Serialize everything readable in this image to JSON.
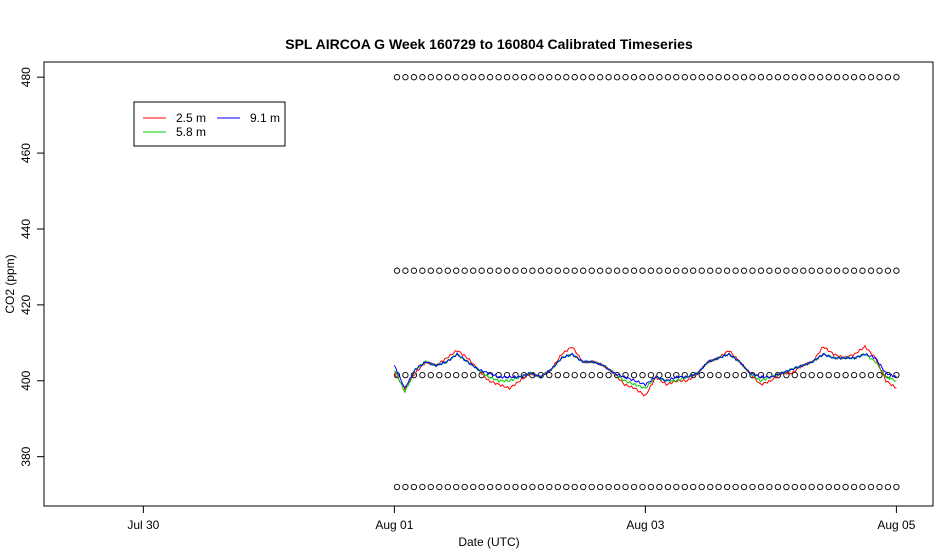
{
  "chart_data": {
    "type": "line",
    "title": "SPL AIRCOA G  Week 160729 to 160804  Calibrated Timeseries",
    "xlabel": "Date (UTC)",
    "ylabel": "CO2 (ppm)",
    "xlim": [
      "2016-07-29T05:00",
      "2016-08-05T07:00"
    ],
    "ylim": [
      367,
      484
    ],
    "x_ticks": [
      {
        "label": "Jul 30",
        "value": "2016-07-30T00:00"
      },
      {
        "label": "Aug 01",
        "value": "2016-08-01T00:00"
      },
      {
        "label": "Aug 03",
        "value": "2016-08-03T00:00"
      },
      {
        "label": "Aug 05",
        "value": "2016-08-05T00:00"
      }
    ],
    "y_ticks": [
      380,
      400,
      420,
      440,
      460,
      480
    ],
    "grid": false,
    "legend": {
      "position": "top-left",
      "columns": 2
    },
    "series": [
      {
        "name": "2.5 m",
        "color": "#ff0000",
        "x": [
          "2016-08-01T00:00",
          "2016-08-01T02:00",
          "2016-08-01T04:00",
          "2016-08-01T06:00",
          "2016-08-01T08:00",
          "2016-08-01T10:00",
          "2016-08-01T12:00",
          "2016-08-01T14:00",
          "2016-08-01T16:00",
          "2016-08-01T18:00",
          "2016-08-01T20:00",
          "2016-08-01T22:00",
          "2016-08-02T00:00",
          "2016-08-02T02:00",
          "2016-08-02T04:00",
          "2016-08-02T06:00",
          "2016-08-02T08:00",
          "2016-08-02T10:00",
          "2016-08-02T12:00",
          "2016-08-02T14:00",
          "2016-08-02T16:00",
          "2016-08-02T18:00",
          "2016-08-02T20:00",
          "2016-08-02T22:00",
          "2016-08-03T00:00",
          "2016-08-03T02:00",
          "2016-08-03T04:00",
          "2016-08-03T06:00",
          "2016-08-03T08:00",
          "2016-08-03T10:00",
          "2016-08-03T12:00",
          "2016-08-03T14:00",
          "2016-08-03T16:00",
          "2016-08-03T18:00",
          "2016-08-03T20:00",
          "2016-08-03T22:00",
          "2016-08-04T00:00",
          "2016-08-04T02:00",
          "2016-08-04T04:00",
          "2016-08-04T06:00",
          "2016-08-04T08:00",
          "2016-08-04T10:00",
          "2016-08-04T12:00",
          "2016-08-04T14:00",
          "2016-08-04T16:00",
          "2016-08-04T18:00",
          "2016-08-04T20:00",
          "2016-08-04T22:00",
          "2016-08-05T00:00"
        ],
        "values": [
          402,
          398,
          402,
          405,
          404,
          406,
          408,
          406,
          403,
          400,
          399,
          398,
          400,
          402,
          401,
          403,
          407,
          409,
          405,
          405,
          404,
          402,
          399,
          398,
          396,
          401,
          399,
          400,
          400,
          402,
          405,
          406,
          408,
          405,
          402,
          399,
          400,
          402,
          402,
          404,
          405,
          409,
          407,
          406,
          407,
          409,
          406,
          400,
          398
        ]
      },
      {
        "name": "5.8 m",
        "color": "#00cc00",
        "x": [
          "2016-08-01T00:00",
          "2016-08-01T02:00",
          "2016-08-01T04:00",
          "2016-08-01T06:00",
          "2016-08-01T08:00",
          "2016-08-01T10:00",
          "2016-08-01T12:00",
          "2016-08-01T14:00",
          "2016-08-01T16:00",
          "2016-08-01T18:00",
          "2016-08-01T20:00",
          "2016-08-01T22:00",
          "2016-08-02T00:00",
          "2016-08-02T02:00",
          "2016-08-02T04:00",
          "2016-08-02T06:00",
          "2016-08-02T08:00",
          "2016-08-02T10:00",
          "2016-08-02T12:00",
          "2016-08-02T14:00",
          "2016-08-02T16:00",
          "2016-08-02T18:00",
          "2016-08-02T20:00",
          "2016-08-02T22:00",
          "2016-08-03T00:00",
          "2016-08-03T02:00",
          "2016-08-03T04:00",
          "2016-08-03T06:00",
          "2016-08-03T08:00",
          "2016-08-03T10:00",
          "2016-08-03T12:00",
          "2016-08-03T14:00",
          "2016-08-03T16:00",
          "2016-08-03T18:00",
          "2016-08-03T20:00",
          "2016-08-03T22:00",
          "2016-08-04T00:00",
          "2016-08-04T02:00",
          "2016-08-04T04:00",
          "2016-08-04T06:00",
          "2016-08-04T08:00",
          "2016-08-04T10:00",
          "2016-08-04T12:00",
          "2016-08-04T14:00",
          "2016-08-04T16:00",
          "2016-08-04T18:00",
          "2016-08-04T20:00",
          "2016-08-04T22:00",
          "2016-08-05T00:00"
        ],
        "values": [
          403,
          397,
          403,
          405,
          404,
          405,
          407,
          405,
          403,
          401,
          400,
          400,
          401,
          402,
          401,
          403,
          406,
          407,
          405,
          405,
          404,
          402,
          400,
          399,
          398,
          401,
          400,
          400,
          401,
          402,
          405,
          406,
          407,
          405,
          402,
          400,
          401,
          402,
          403,
          404,
          405,
          407,
          406,
          406,
          406,
          407,
          405,
          401,
          400
        ]
      },
      {
        "name": "9.1 m",
        "color": "#0000ff",
        "x": [
          "2016-08-01T00:00",
          "2016-08-01T02:00",
          "2016-08-01T04:00",
          "2016-08-01T06:00",
          "2016-08-01T08:00",
          "2016-08-01T10:00",
          "2016-08-01T12:00",
          "2016-08-01T14:00",
          "2016-08-01T16:00",
          "2016-08-01T18:00",
          "2016-08-01T20:00",
          "2016-08-01T22:00",
          "2016-08-02T00:00",
          "2016-08-02T02:00",
          "2016-08-02T04:00",
          "2016-08-02T06:00",
          "2016-08-02T08:00",
          "2016-08-02T10:00",
          "2016-08-02T12:00",
          "2016-08-02T14:00",
          "2016-08-02T16:00",
          "2016-08-02T18:00",
          "2016-08-02T20:00",
          "2016-08-02T22:00",
          "2016-08-03T00:00",
          "2016-08-03T02:00",
          "2016-08-03T04:00",
          "2016-08-03T06:00",
          "2016-08-03T08:00",
          "2016-08-03T10:00",
          "2016-08-03T12:00",
          "2016-08-03T14:00",
          "2016-08-03T16:00",
          "2016-08-03T18:00",
          "2016-08-03T20:00",
          "2016-08-03T22:00",
          "2016-08-04T00:00",
          "2016-08-04T02:00",
          "2016-08-04T04:00",
          "2016-08-04T06:00",
          "2016-08-04T08:00",
          "2016-08-04T10:00",
          "2016-08-04T12:00",
          "2016-08-04T14:00",
          "2016-08-04T16:00",
          "2016-08-04T18:00",
          "2016-08-04T20:00",
          "2016-08-04T22:00",
          "2016-08-05T00:00"
        ],
        "values": [
          404,
          398,
          403,
          405,
          404,
          405,
          407,
          405,
          403,
          402,
          401,
          401,
          401,
          402,
          401,
          403,
          406,
          407,
          405,
          405,
          404,
          402,
          401,
          400,
          399,
          401,
          400,
          401,
          401,
          402,
          405,
          406,
          407,
          405,
          402,
          401,
          401,
          402,
          403,
          404,
          405,
          407,
          406,
          406,
          406,
          407,
          406,
          402,
          401
        ]
      }
    ],
    "reference_points": {
      "marker": "open-circle",
      "color": "#000000",
      "start": "2016-08-01T00:30",
      "end": "2016-08-05T00:00",
      "levels": [
        480,
        429,
        401.5,
        372
      ]
    }
  }
}
